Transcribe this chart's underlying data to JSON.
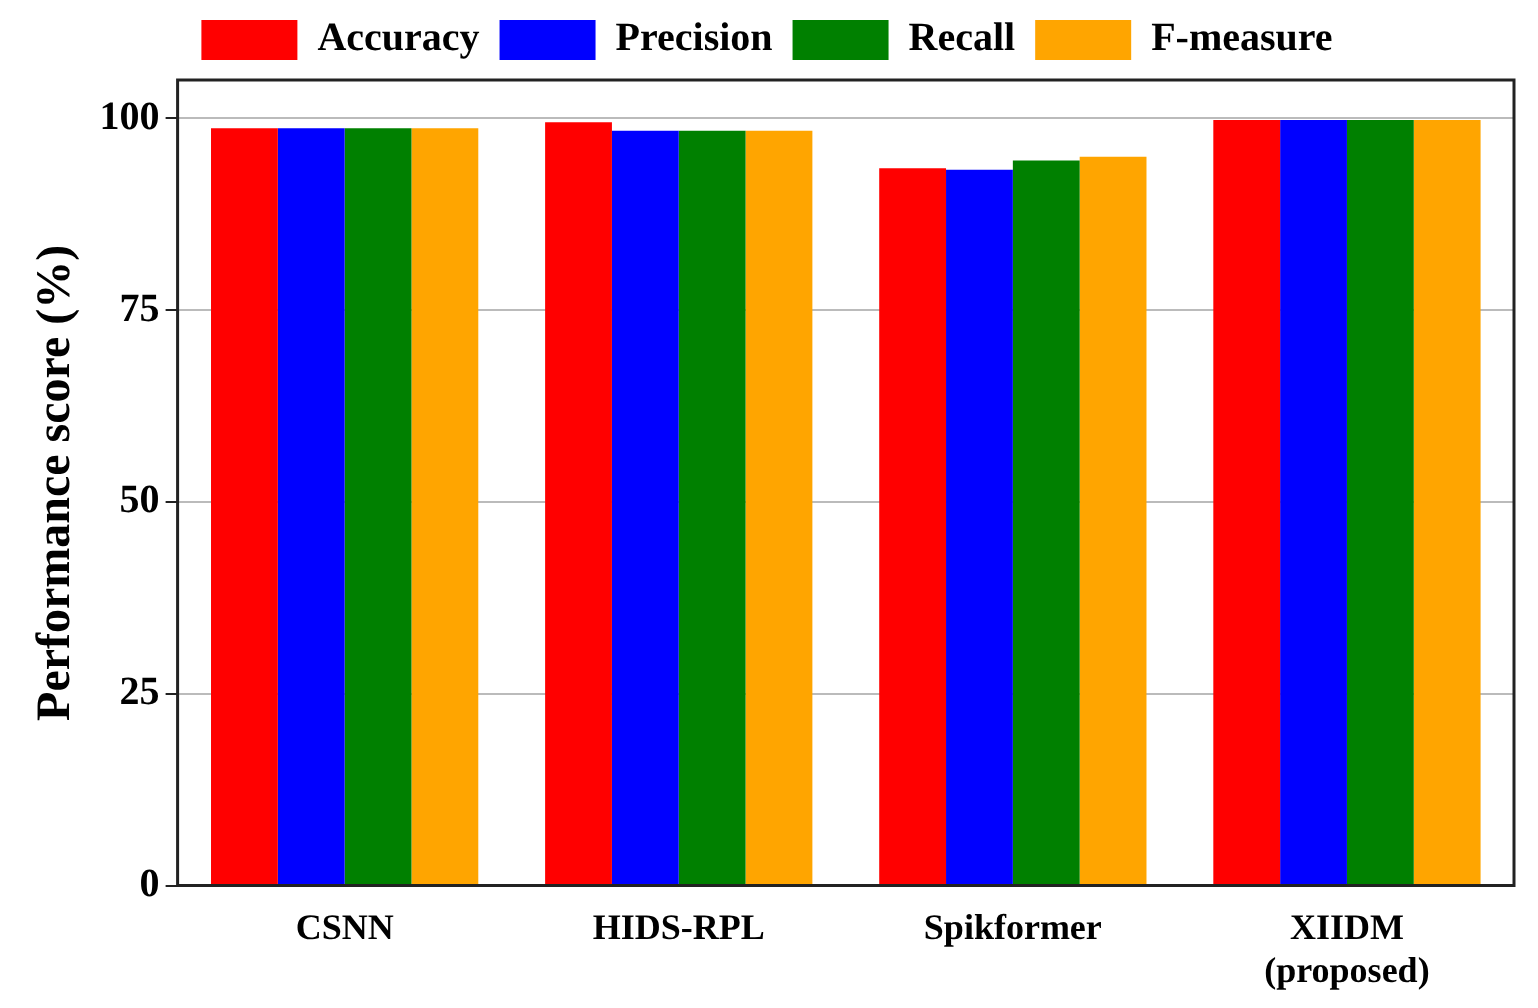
{
  "chart_data": {
    "type": "bar",
    "ylabel": "Performance score (%)",
    "categories": [
      "CSNN",
      "HIDS-RPL",
      "Spikformer",
      "XIIDM\n(proposed)"
    ],
    "series": [
      {
        "name": "Accuracy",
        "color": "#ff0000",
        "values": [
          98.7,
          99.5,
          93.5,
          99.8
        ]
      },
      {
        "name": "Precision",
        "color": "#0000ff",
        "values": [
          98.7,
          98.4,
          93.3,
          99.8
        ]
      },
      {
        "name": "Recall",
        "color": "#008000",
        "values": [
          98.7,
          98.4,
          94.5,
          99.8
        ]
      },
      {
        "name": "F-measure",
        "color": "#ffa500",
        "values": [
          98.7,
          98.4,
          95.0,
          99.8
        ]
      }
    ],
    "ylim": [
      0,
      105
    ],
    "yticks": [
      0,
      25,
      50,
      75,
      100
    ],
    "grid": "y",
    "legend": "top"
  }
}
